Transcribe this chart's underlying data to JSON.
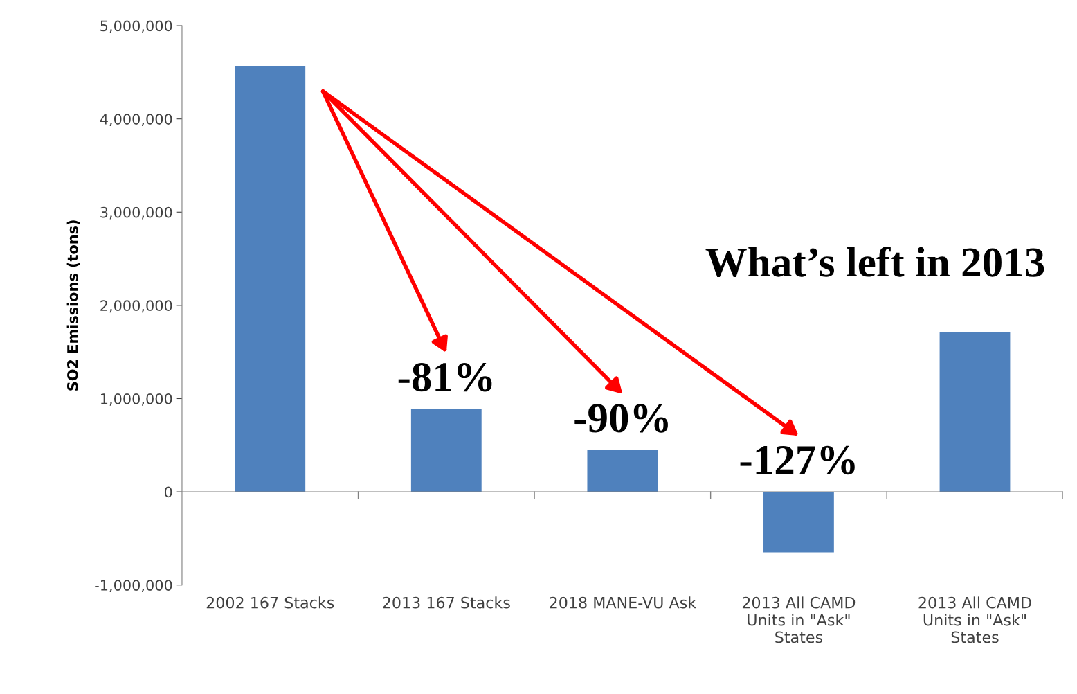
{
  "chart_data": {
    "type": "bar",
    "ylabel": "SO2 Emissions (tons)",
    "categories": [
      "2002 167 Stacks",
      "2013 167 Stacks",
      "2018 MANE-VU Ask",
      "2013 All CAMD Units in \"Ask\" States",
      "2013 All CAMD Units in \"Ask\" States"
    ],
    "values": [
      4570000,
      890000,
      450000,
      -650000,
      1710000
    ],
    "color": "#4f81bd",
    "ylim": [
      -1000000,
      5000000
    ],
    "yticks": [
      {
        "value": -1000000,
        "label": "-1,000,000"
      },
      {
        "value": 0,
        "label": "0"
      },
      {
        "value": 1000000,
        "label": "1,000,000"
      },
      {
        "value": 2000000,
        "label": "2,000,000"
      },
      {
        "value": 3000000,
        "label": "3,000,000"
      },
      {
        "value": 4000000,
        "label": "4,000,000"
      },
      {
        "value": 5000000,
        "label": "5,000,000"
      }
    ],
    "annotations": [
      "-81%",
      "-90%",
      "-127%",
      "What’s left in 2013"
    ]
  }
}
